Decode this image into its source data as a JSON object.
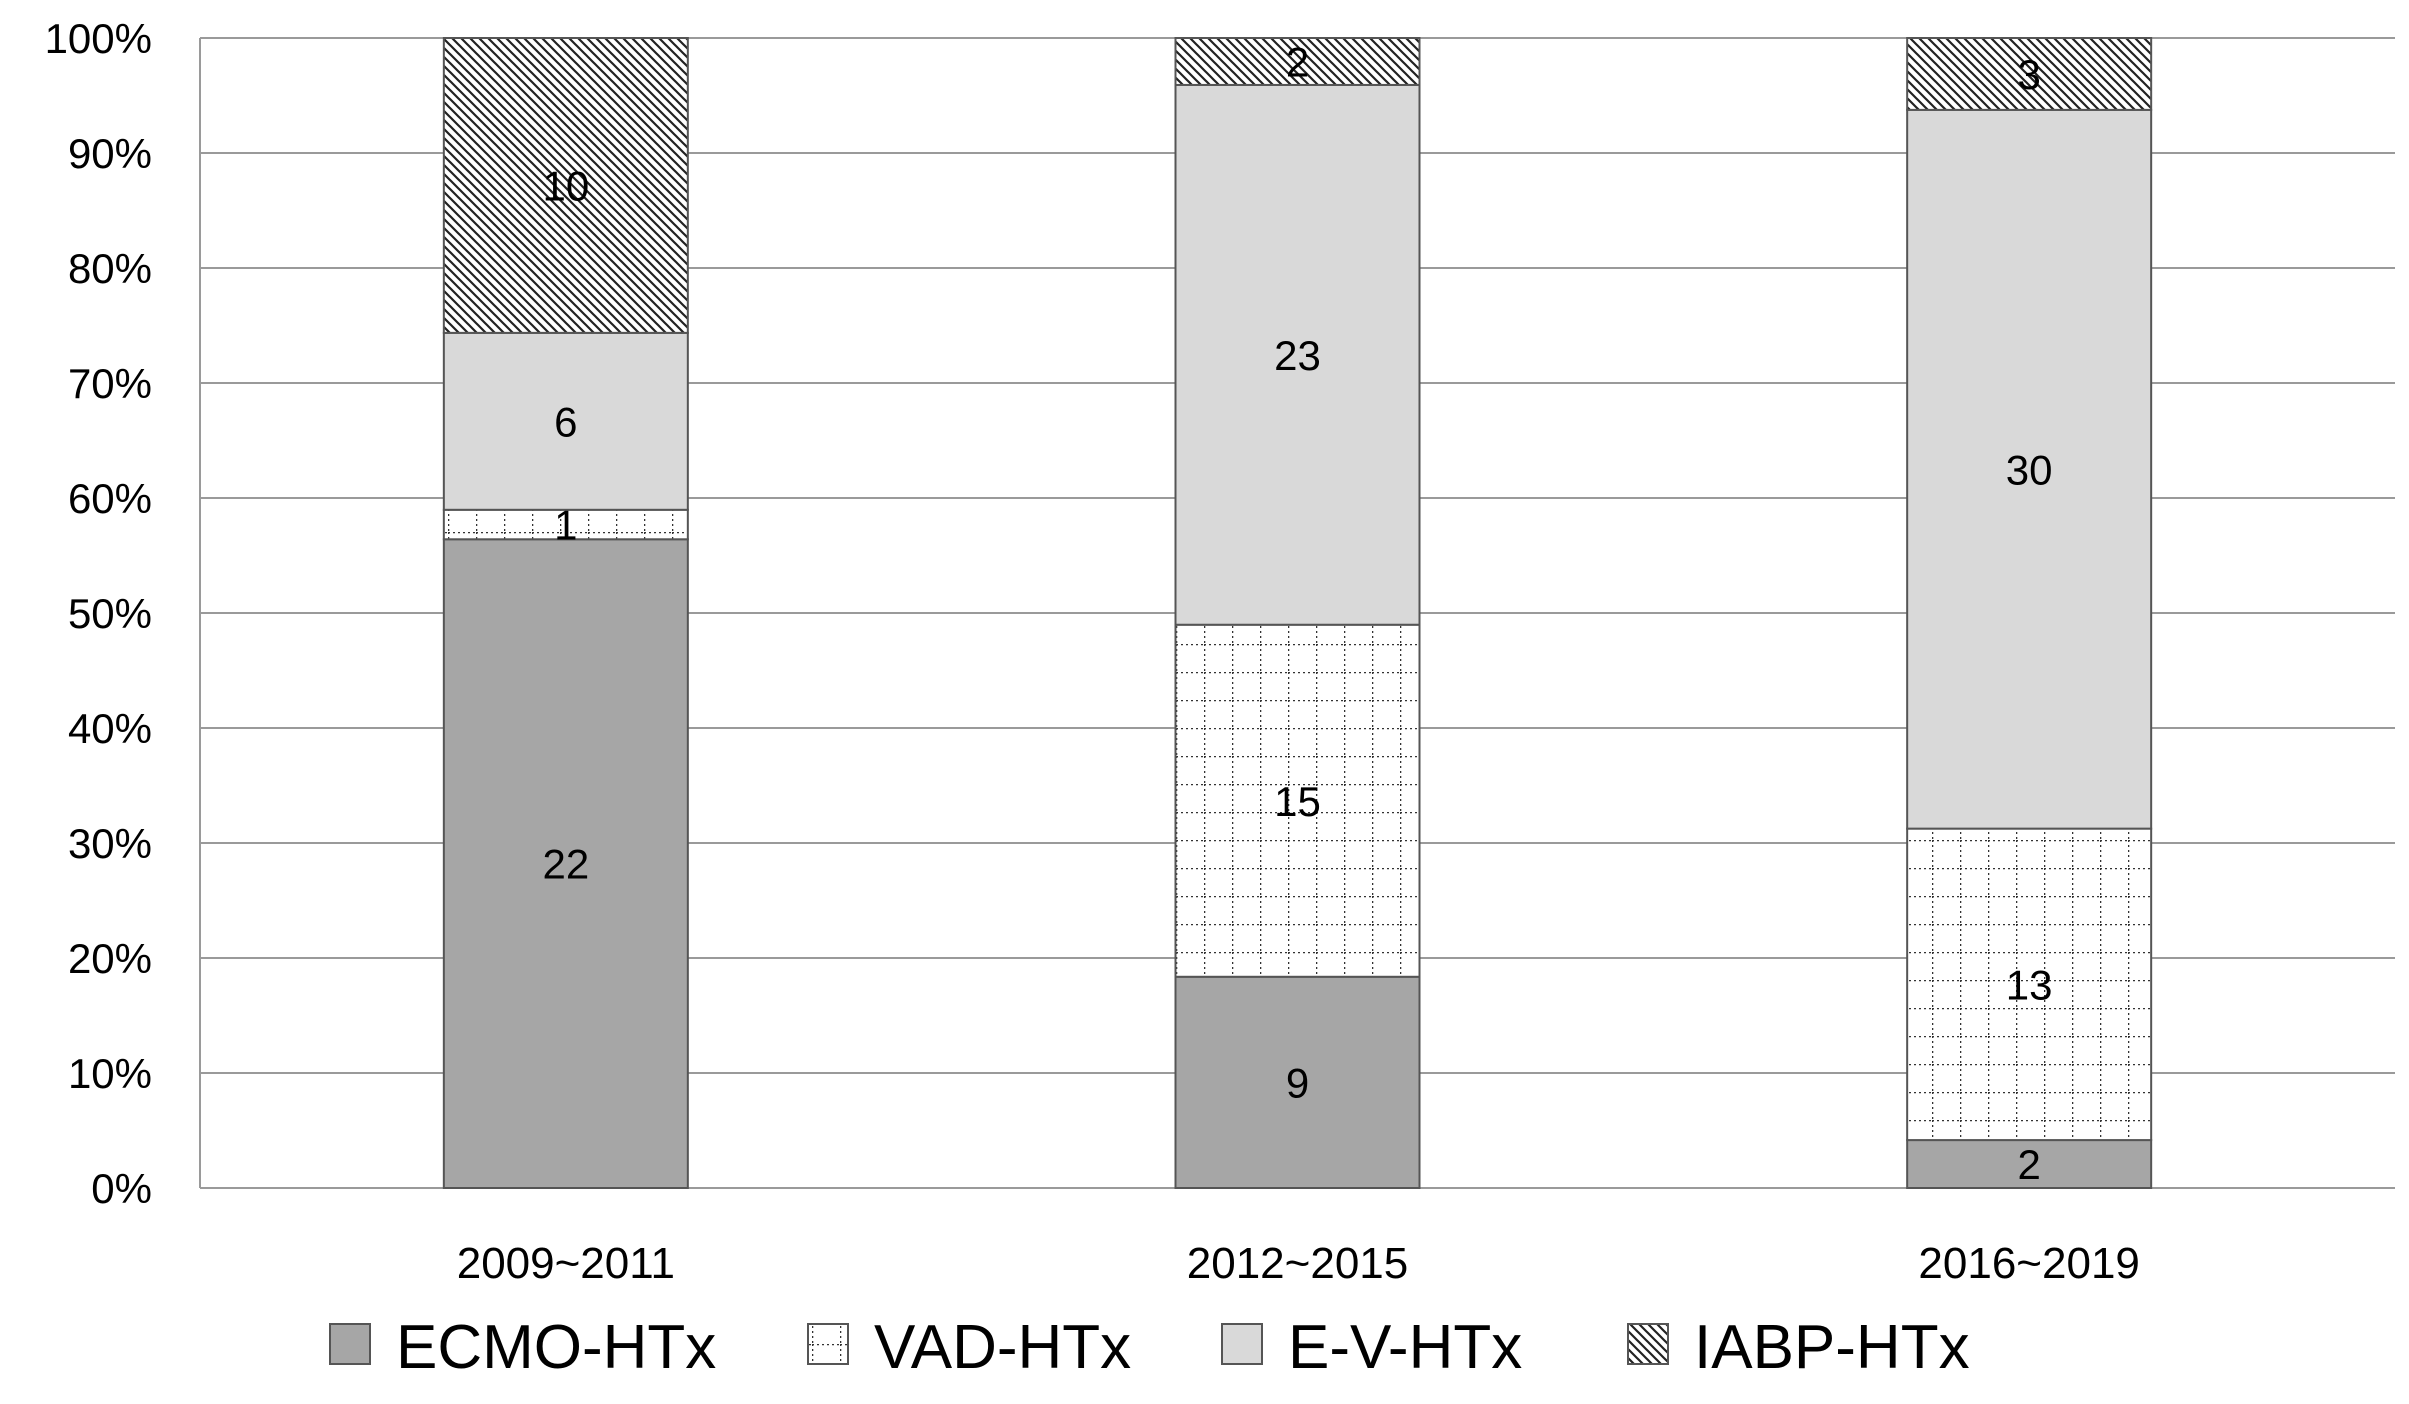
{
  "chart_data": {
    "type": "bar",
    "stacked": true,
    "percent": true,
    "categories": [
      "2009~2011",
      "2012~2015",
      "2016~2019"
    ],
    "series": [
      {
        "name": "ECMO-HTx",
        "values": [
          22,
          9,
          2
        ],
        "color": "#a6a6a6",
        "pattern": "solid"
      },
      {
        "name": "VAD-HTx",
        "values": [
          1,
          15,
          13
        ],
        "color": "#ffffff",
        "pattern": "dotted-grid"
      },
      {
        "name": "E-V-HTx",
        "values": [
          6,
          23,
          30
        ],
        "color": "#d9d9d9",
        "pattern": "solid"
      },
      {
        "name": "IABP-HTx",
        "values": [
          10,
          2,
          3
        ],
        "color": "#ffffff",
        "pattern": "diagonal-hatch"
      }
    ],
    "yticks": [
      "0%",
      "10%",
      "20%",
      "30%",
      "40%",
      "50%",
      "60%",
      "70%",
      "80%",
      "90%",
      "100%"
    ],
    "ylim": [
      0,
      100
    ],
    "grid": true,
    "legend_position": "bottom"
  }
}
